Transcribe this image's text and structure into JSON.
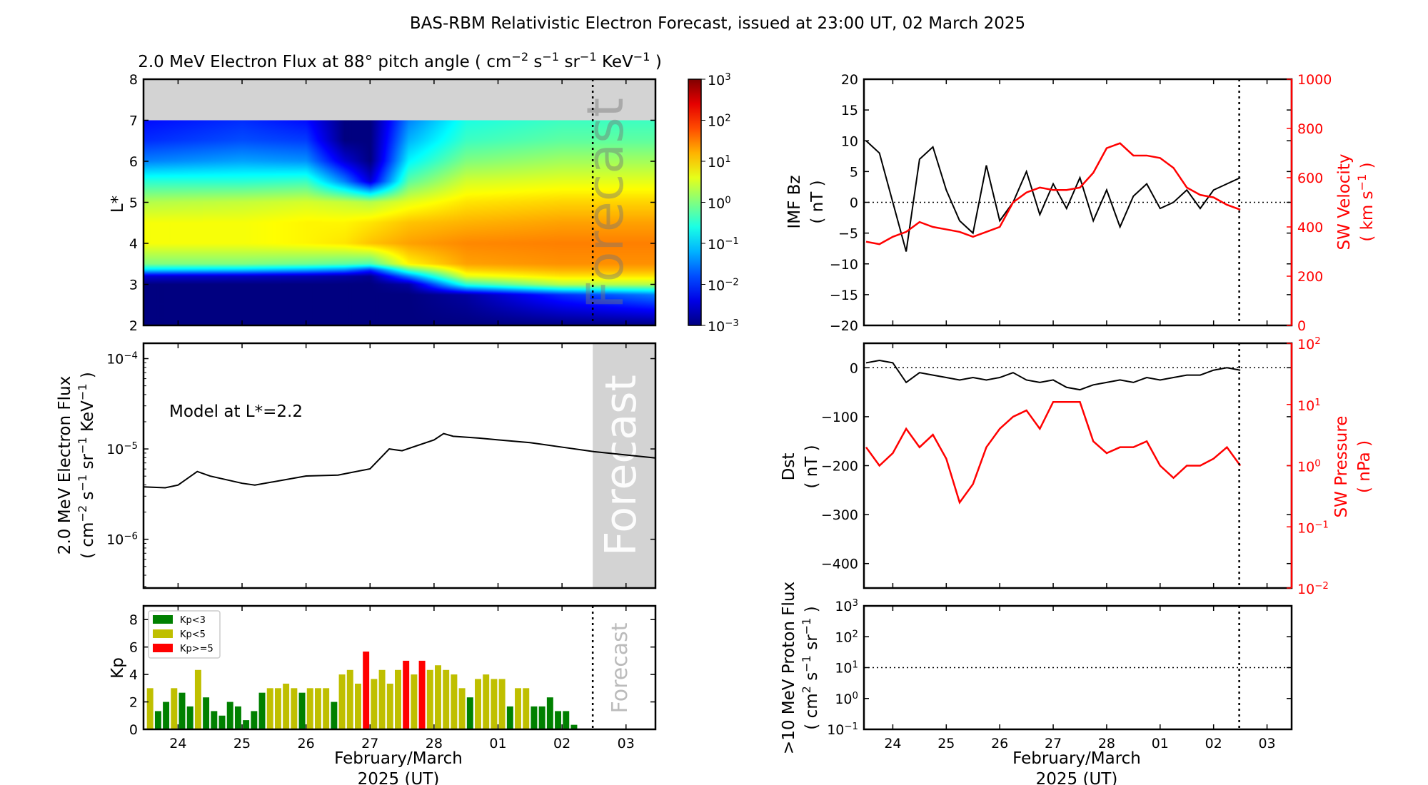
{
  "title": "BAS-RBM Relativistic Electron Forecast, issued at 23:00 UT, 02 March 2025",
  "forecast_label": "Forecast",
  "colors": {
    "kp_low": "#008000",
    "kp_mid": "#bfbf00",
    "kp_high": "#ff0000",
    "sw": "#ff0000",
    "forecast_shade": "#d3d3d3",
    "missing": "#d3d3d3"
  },
  "x_axis": {
    "tick_labels": [
      "24",
      "25",
      "26",
      "27",
      "28",
      "01",
      "02",
      "03"
    ],
    "label_line1": "February/March",
    "label_line2": "2025 (UT)",
    "range_days_from_feb24": [
      -0.54,
      7.46
    ],
    "forecast_start_day": 6.48
  },
  "chart_data": [
    {
      "id": "spectrogram",
      "type": "heatmap",
      "title": "2.0 MeV Electron Flux at 88° pitch angle ( cm^-2 s^-1 sr^-1 KeV^-1 )",
      "ylabel": "L*",
      "ylim": [
        2,
        8
      ],
      "yticks": [
        "2",
        "3",
        "4",
        "5",
        "6",
        "7",
        "8"
      ],
      "colorbar_ticks": [
        "10^-3",
        "10^-2",
        "10^-1",
        "10^0",
        "10^1",
        "10^2",
        "10^3"
      ],
      "colorbar_log_range": [
        -3,
        3
      ],
      "no_data_above_L": 7,
      "days": [
        -0.54,
        1,
        2,
        2.6,
        3.0,
        3.6,
        4.5,
        6,
        7.46
      ],
      "L": [
        2,
        2.75,
        3.0,
        3.2,
        3.35,
        3.5,
        4,
        4.5,
        5,
        5.5,
        6,
        6.5,
        7
      ],
      "log10_flux": [
        [
          -3,
          -3,
          -3,
          -3,
          -3,
          -3,
          -3,
          -3,
          -3
        ],
        [
          -3,
          -3,
          -3,
          -3,
          -3,
          -3,
          -2.8,
          -2,
          -1.5
        ],
        [
          -3,
          -3,
          -3,
          -3,
          -3,
          -2.8,
          -0.5,
          0.3,
          0.3
        ],
        [
          -2.5,
          -2.6,
          -2.7,
          -2.8,
          -2.9,
          -1.5,
          0.6,
          0.9,
          0.9
        ],
        [
          -1.0,
          -1.1,
          -1.3,
          -1.5,
          -2,
          -0.3,
          1.0,
          1.2,
          1.2
        ],
        [
          0.0,
          0.0,
          -0.1,
          -0.2,
          -0.3,
          0.8,
          1.3,
          1.4,
          1.4
        ],
        [
          0.7,
          0.7,
          0.8,
          0.9,
          1.1,
          1.3,
          1.45,
          1.5,
          1.5
        ],
        [
          0.7,
          0.7,
          0.8,
          0.8,
          0.9,
          1.1,
          1.2,
          1.3,
          1.3
        ],
        [
          0.3,
          0.4,
          0.5,
          0.4,
          0.3,
          0.6,
          0.9,
          1.0,
          1.0
        ],
        [
          -0.5,
          -0.5,
          -0.4,
          -1.5,
          -2.5,
          -0.2,
          0.5,
          0.6,
          0.6
        ],
        [
          -1.5,
          -1.3,
          -1.4,
          -2.5,
          -3,
          -0.8,
          0.0,
          0.2,
          0.2
        ],
        [
          -2.0,
          -1.8,
          -1.9,
          -3,
          -3,
          -1.2,
          -0.4,
          -0.2,
          -0.2
        ],
        [
          -2.2,
          -2.0,
          -2.2,
          -3,
          -3,
          -1.5,
          -0.6,
          -0.4,
          -0.4
        ]
      ]
    },
    {
      "id": "flux_line",
      "type": "line",
      "ylabel_line1": "2.0 MeV Electron Flux",
      "ylabel_line2": "( cm^-2 s^-1 sr^-1 KeV^-1 )",
      "annotation": "Model at L*=2.2",
      "ylog_range": [
        -6.54,
        -3.83
      ],
      "yticks": [
        "10^-6",
        "10^-5",
        "10^-4"
      ],
      "x_days": [
        -0.54,
        -0.2,
        0,
        0.3,
        0.5,
        1,
        1.2,
        2,
        2.5,
        3.0,
        3.3,
        3.5,
        4,
        4.15,
        4.3,
        4.7,
        5,
        5.5,
        6,
        6.5,
        7.46
      ],
      "log10_values": [
        -5.42,
        -5.43,
        -5.4,
        -5.25,
        -5.3,
        -5.38,
        -5.4,
        -5.3,
        -5.29,
        -5.22,
        -5.0,
        -5.02,
        -4.9,
        -4.83,
        -4.86,
        -4.88,
        -4.9,
        -4.93,
        -4.98,
        -5.03,
        -5.1
      ]
    },
    {
      "id": "kp",
      "type": "bar",
      "ylabel": "Kp",
      "ylim": [
        0,
        9
      ],
      "yticks": [
        "0",
        "2",
        "4",
        "6",
        "8"
      ],
      "legend": [
        "Kp<3",
        "Kp<5",
        "Kp>=5"
      ],
      "legend_position": "top-left",
      "first_bar_day": -0.4375,
      "bar_step_days": 0.125,
      "values": [
        3,
        1.33,
        2,
        3,
        2.67,
        1.67,
        4.33,
        2.33,
        1.33,
        1,
        2,
        1.67,
        0.67,
        1.33,
        2.67,
        3,
        3,
        3.33,
        3,
        2.67,
        3,
        3,
        3,
        2,
        4,
        4.33,
        3.33,
        5.67,
        3.67,
        4.33,
        3.33,
        4.33,
        5,
        4,
        5,
        4.33,
        4.67,
        4.33,
        4,
        3,
        2.33,
        3.67,
        4,
        3.67,
        3.67,
        1.67,
        3,
        3,
        1.67,
        1.67,
        2.33,
        1.33,
        1.33,
        0.33
      ]
    },
    {
      "id": "imf_sw_velocity",
      "type": "line",
      "ylabel_left_line1": "IMF Bz",
      "ylabel_left_line2": "( nT )",
      "ylabel_right_line1": "SW Velocity",
      "ylabel_right_line2": "( km s^-1 )",
      "ylim_left": [
        -20,
        20
      ],
      "yticks_left": [
        "−20",
        "−15",
        "−10",
        "−5",
        "0",
        "5",
        "10",
        "15",
        "20"
      ],
      "ylim_right": [
        0,
        1000
      ],
      "yticks_right": [
        "0",
        "200",
        "400",
        "600",
        "800",
        "1000"
      ],
      "x_days": [
        -0.5,
        -0.25,
        0,
        0.25,
        0.5,
        0.75,
        1,
        1.25,
        1.5,
        1.75,
        2,
        2.25,
        2.5,
        2.75,
        3,
        3.25,
        3.5,
        3.75,
        4,
        4.25,
        4.5,
        4.75,
        5,
        5.25,
        5.5,
        5.75,
        6,
        6.25,
        6.5
      ],
      "bz": [
        10,
        8,
        0,
        -8,
        7,
        9,
        2,
        -3,
        -5,
        6,
        -3,
        0,
        5,
        -2,
        3,
        -1,
        4,
        -3,
        2,
        -4,
        1,
        3,
        -1,
        0,
        2,
        -1,
        2,
        3,
        4
      ],
      "velocity": [
        340,
        330,
        360,
        380,
        420,
        400,
        390,
        380,
        360,
        380,
        400,
        500,
        540,
        560,
        550,
        550,
        560,
        620,
        720,
        740,
        690,
        690,
        680,
        640,
        560,
        530,
        520,
        490,
        470
      ]
    },
    {
      "id": "dst_sw_pressure",
      "type": "line",
      "ylabel_left_line1": "Dst",
      "ylabel_left_line2": "( nT )",
      "ylabel_right_line1": "SW Pressure",
      "ylabel_right_line2": "( nPa )",
      "ylim_left": [
        -450,
        50
      ],
      "yticks_left": [
        "−400",
        "−300",
        "−200",
        "−100",
        "0"
      ],
      "ylog_right": [
        -2,
        2
      ],
      "yticks_right": [
        "10^-2",
        "10^-1",
        "10^0",
        "10^1",
        "10^2"
      ],
      "x_days": [
        -0.5,
        -0.25,
        0,
        0.25,
        0.5,
        0.75,
        1,
        1.25,
        1.5,
        1.75,
        2,
        2.25,
        2.5,
        2.75,
        3,
        3.25,
        3.5,
        3.75,
        4,
        4.25,
        4.5,
        4.75,
        5,
        5.25,
        5.5,
        5.75,
        6,
        6.25,
        6.5
      ],
      "dst": [
        10,
        15,
        10,
        -30,
        -10,
        -15,
        -20,
        -25,
        -20,
        -25,
        -20,
        -10,
        -25,
        -30,
        -25,
        -40,
        -45,
        -35,
        -30,
        -25,
        -30,
        -20,
        -25,
        -20,
        -15,
        -15,
        -5,
        0,
        -5
      ],
      "pressure": [
        2,
        1,
        1.6,
        4,
        2,
        3.2,
        1.3,
        0.25,
        0.5,
        2,
        4,
        6.3,
        8,
        4,
        11,
        11,
        11,
        2.5,
        1.6,
        2,
        2,
        2.5,
        1,
        0.63,
        1,
        1,
        1.3,
        2,
        1
      ]
    },
    {
      "id": "proton_flux",
      "type": "line",
      "ylabel_line1": ">10 MeV Proton Flux",
      "ylabel_line2": "( cm^2 s^-1 sr^-1 )",
      "ylog_range": [
        -1,
        3
      ],
      "yticks": [
        "10^-1",
        "10^0",
        "10^1",
        "10^2",
        "10^3"
      ],
      "threshold": 10
    }
  ]
}
